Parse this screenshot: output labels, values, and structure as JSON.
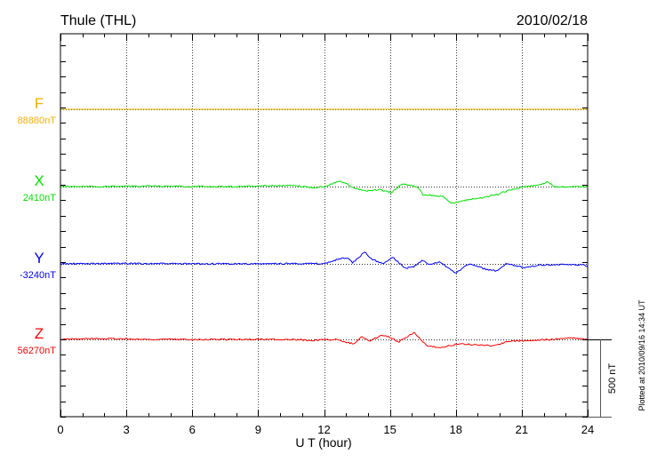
{
  "header": {
    "station": "Thule (THL)",
    "date": "2010/02/18"
  },
  "footer": {
    "plotted": "Plotted at 2010/09/16 14:34 UT"
  },
  "chart_data": {
    "type": "line",
    "title": "Thule (THL)",
    "date": "2010/02/18",
    "xlabel": "U T (hour)",
    "xlim": [
      0,
      24
    ],
    "xticks": [
      "0",
      "3",
      "6",
      "9",
      "12",
      "15",
      "18",
      "21",
      "24"
    ],
    "grid": "dotted vertical every 3 hours, dotted baseline per component",
    "scale_bar": {
      "label": "500 nT",
      "value": 500
    },
    "series": [
      {
        "name": "F",
        "baseline_label": "88880nT",
        "baseline": 88880,
        "color": "#f5b000",
        "x": [
          0,
          24
        ],
        "y": [
          0,
          0
        ]
      },
      {
        "name": "X",
        "baseline_label": "2410nT",
        "baseline": 2410,
        "color": "#00e000",
        "x": [
          0,
          2,
          4,
          6,
          8,
          9.5,
          10.5,
          11.5,
          12.0,
          12.67,
          13.0,
          13.4,
          14.0,
          14.5,
          15.06,
          15.55,
          16.0,
          16.3,
          16.5,
          17.0,
          17.5,
          17.8,
          18.3,
          19.1,
          19.9,
          20.3,
          21.1,
          21.6,
          22.2,
          22.5,
          23.3,
          24
        ],
        "y": [
          0,
          0,
          3,
          0,
          0,
          6,
          6,
          -6,
          0,
          33,
          20,
          -12,
          -29,
          -20,
          -40,
          17,
          6,
          -6,
          -52,
          -58,
          -69,
          -109,
          -92,
          -75,
          -52,
          -29,
          0,
          6,
          29,
          0,
          0,
          0
        ]
      },
      {
        "name": "Y",
        "baseline_label": "-3240nT",
        "baseline": -3240,
        "color": "#0000ff",
        "x": [
          0,
          3,
          6,
          9,
          11,
          12.0,
          12.6,
          13.05,
          13.3,
          13.85,
          14.2,
          14.7,
          15.1,
          15.7,
          16.1,
          16.5,
          16.8,
          17.25,
          18.0,
          18.6,
          19.5,
          19.9,
          20.3,
          21.1,
          21.9,
          23.8,
          24
        ],
        "y": [
          0,
          3,
          0,
          0,
          3,
          0,
          29,
          40,
          6,
          75,
          29,
          0,
          46,
          -29,
          -17,
          23,
          -6,
          12,
          -58,
          0,
          -40,
          -46,
          0,
          -23,
          -6,
          -6,
          -17
        ]
      },
      {
        "name": "Z",
        "baseline_label": "56270nT",
        "baseline": 56270,
        "color": "#ff0000",
        "x": [
          0,
          1,
          2,
          4,
          6,
          9,
          10,
          11.5,
          12.5,
          13.35,
          13.7,
          14.1,
          14.6,
          15.06,
          15.4,
          16.1,
          16.7,
          17.4,
          18.1,
          19.0,
          19.7,
          20.5,
          21.5,
          22.5,
          23.2,
          24
        ],
        "y": [
          0,
          3,
          6,
          0,
          0,
          0,
          0,
          -6,
          0,
          -29,
          17,
          -12,
          29,
          12,
          -17,
          46,
          -46,
          -52,
          -29,
          -35,
          -40,
          -12,
          -6,
          0,
          12,
          0
        ]
      }
    ]
  }
}
